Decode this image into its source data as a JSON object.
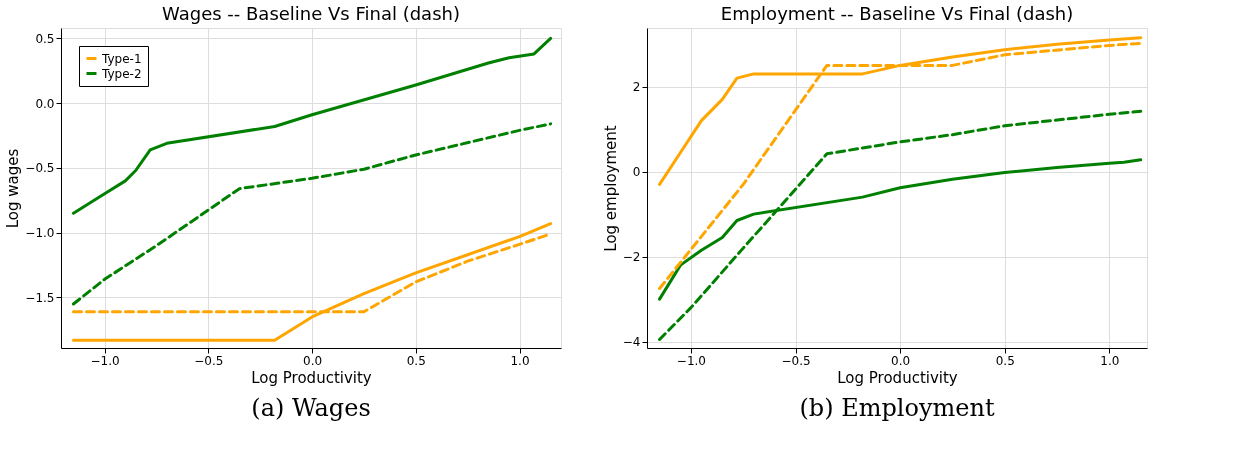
{
  "chart_data": [
    {
      "type": "line",
      "title": "Wages -- Baseline Vs Final (dash)",
      "xlabel": "Log Productivity",
      "ylabel": "Log wages",
      "grid": true,
      "legend": "top left",
      "marker": "none",
      "xlim": [
        -1.21,
        1.2
      ],
      "ylim": [
        -1.89,
        0.58
      ],
      "xticks": [
        {
          "value": -1,
          "label": "−1.0"
        },
        {
          "value": -0.5,
          "label": "−0.5"
        },
        {
          "value": 0,
          "label": "0.0"
        },
        {
          "value": 0.5,
          "label": "0.5"
        },
        {
          "value": 1,
          "label": "1.0"
        }
      ],
      "yticks": [
        {
          "value": -1.5,
          "label": "−1.5"
        },
        {
          "value": -1,
          "label": "−1.0"
        },
        {
          "value": -0.5,
          "label": "−0.5"
        },
        {
          "value": 0,
          "label": "0.0"
        },
        0.5
      ],
      "annotations": [
        "(a) Wages"
      ],
      "series": [
        {
          "name": "Type-1",
          "color": "#ffa500",
          "line_style": "solid",
          "x": [
            -1.15,
            -0.18,
            0,
            0.25,
            0.5,
            0.75,
            1.0,
            1.15
          ],
          "values": [
            -1.83,
            -1.83,
            -1.65,
            -1.47,
            -1.31,
            -1.17,
            -1.03,
            -0.93
          ]
        },
        {
          "name": "Type-2",
          "color": "#008000",
          "line_style": "solid",
          "x": [
            -1.15,
            -1.0,
            -0.9,
            -0.85,
            -0.78,
            -0.7,
            -0.18,
            0,
            0.5,
            0.85,
            0.95,
            1.07,
            1.15
          ],
          "values": [
            -0.85,
            -0.7,
            -0.6,
            -0.52,
            -0.36,
            -0.31,
            -0.18,
            -0.09,
            0.14,
            0.31,
            0.35,
            0.38,
            0.5
          ]
        },
        {
          "color": "#ffa500",
          "line_style": "dashed",
          "x": [
            -1.15,
            0.25,
            0.5,
            0.75,
            1.0,
            1.15
          ],
          "values": [
            -1.61,
            -1.61,
            -1.38,
            -1.22,
            -1.09,
            -1.01
          ]
        },
        {
          "color": "#008000",
          "line_style": "dashed",
          "x": [
            -1.15,
            -1.0,
            -0.75,
            -0.35,
            0,
            0.25,
            0.5,
            1.0,
            1.15
          ],
          "values": [
            -1.55,
            -1.36,
            -1.1,
            -0.66,
            -0.58,
            -0.51,
            -0.4,
            -0.21,
            -0.16
          ]
        }
      ]
    },
    {
      "type": "line",
      "title": "Employment -- Baseline Vs Final (dash)",
      "xlabel": "Log Productivity",
      "ylabel": "Log employment",
      "grid": true,
      "legend": "top left",
      "marker": "none",
      "xlim": [
        -1.21,
        1.18
      ],
      "ylim": [
        -4.15,
        3.38
      ],
      "xticks": [
        {
          "value": -1,
          "label": "−1.0"
        },
        {
          "value": -0.5,
          "label": "−0.5"
        },
        {
          "value": 0,
          "label": "0.0"
        },
        {
          "value": 0.5,
          "label": "0.5"
        },
        {
          "value": 1,
          "label": "1.0"
        }
      ],
      "yticks": [
        {
          "value": -4,
          "label": "−4"
        },
        {
          "value": -2,
          "label": "−2"
        },
        0,
        2
      ],
      "annotations": [
        "(b) Employment"
      ],
      "series": [
        {
          "name": "Type-1",
          "color": "#ffa500",
          "line_style": "solid",
          "x": [
            -1.15,
            -1.05,
            -0.95,
            -0.85,
            -0.78,
            -0.7,
            -0.18,
            0,
            0.25,
            0.5,
            0.75,
            1.0,
            1.15
          ],
          "values": [
            -0.3,
            0.45,
            1.2,
            1.7,
            2.2,
            2.3,
            2.3,
            2.5,
            2.7,
            2.87,
            3.0,
            3.1,
            3.15
          ]
        },
        {
          "name": "Type-2",
          "color": "#008000",
          "line_style": "solid",
          "x": [
            -1.15,
            -1.05,
            -0.95,
            -0.85,
            -0.78,
            -0.7,
            -0.18,
            0,
            0.25,
            0.5,
            0.75,
            1.0,
            1.07,
            1.15
          ],
          "values": [
            -3.0,
            -2.2,
            -1.85,
            -1.55,
            -1.15,
            -1.0,
            -0.6,
            -0.38,
            -0.18,
            -0.02,
            0.1,
            0.2,
            0.22,
            0.28
          ]
        },
        {
          "color": "#ffa500",
          "line_style": "dashed",
          "x": [
            -1.15,
            -0.75,
            -0.35,
            0.25,
            0.5,
            1.0,
            1.15
          ],
          "values": [
            -2.75,
            -0.3,
            2.5,
            2.5,
            2.75,
            2.97,
            3.02
          ]
        },
        {
          "color": "#008000",
          "line_style": "dashed",
          "x": [
            -1.15,
            -1.0,
            -0.75,
            -0.35,
            0,
            0.25,
            0.5,
            1.0,
            1.15
          ],
          "values": [
            -3.95,
            -3.2,
            -1.8,
            0.42,
            0.7,
            0.87,
            1.08,
            1.35,
            1.42
          ]
        }
      ]
    }
  ]
}
